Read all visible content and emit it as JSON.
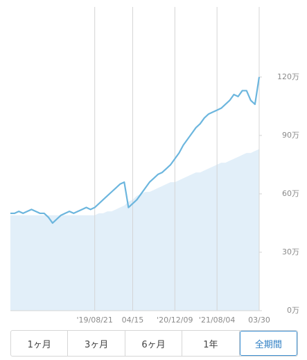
{
  "chart_data": {
    "type": "line",
    "categories": [
      null,
      null,
      null,
      null,
      null,
      null,
      null,
      null,
      null,
      null,
      null,
      null,
      null,
      null,
      null,
      null,
      null,
      null,
      null,
      null,
      "'19/08/21",
      null,
      null,
      null,
      null,
      null,
      null,
      null,
      null,
      "04/15",
      null,
      null,
      null,
      null,
      null,
      null,
      null,
      null,
      null,
      "'20/12/09",
      null,
      null,
      null,
      null,
      null,
      null,
      null,
      null,
      null,
      "'21/08/04",
      null,
      null,
      null,
      null,
      null,
      null,
      null,
      null,
      null,
      "03/30"
    ],
    "series": [
      {
        "color": "#6cb6de",
        "values": [
          50,
          50,
          51,
          50,
          51,
          52,
          51,
          50,
          50,
          48,
          45,
          47,
          49,
          50,
          51,
          50,
          51,
          52,
          53,
          52,
          53,
          55,
          57,
          59,
          61,
          63,
          65,
          66,
          53,
          55,
          57,
          60,
          63,
          66,
          68,
          70,
          71,
          73,
          75,
          78,
          81,
          85,
          88,
          91,
          94,
          96,
          99,
          101,
          102,
          103,
          104,
          106,
          108,
          111,
          110,
          113,
          113,
          108,
          106,
          120
        ]
      },
      {
        "color": "#e2eff9",
        "area": true,
        "values": [
          49,
          49,
          49,
          49,
          49,
          49,
          49,
          49,
          49,
          49,
          49,
          49,
          49,
          49,
          49,
          49,
          49,
          49,
          49,
          49,
          49,
          50,
          50,
          51,
          51,
          52,
          53,
          54,
          56,
          57,
          59,
          60,
          61,
          61,
          62,
          63,
          64,
          65,
          66,
          66,
          67,
          68,
          69,
          70,
          71,
          71,
          72,
          73,
          74,
          75,
          76,
          76,
          77,
          78,
          79,
          80,
          81,
          81,
          82,
          83
        ]
      }
    ],
    "ylim": [
      0,
      156
    ],
    "yticks": [
      {
        "value": 0,
        "label": "0万"
      },
      {
        "value": 30,
        "label": "30万"
      },
      {
        "value": 60,
        "label": "60万"
      },
      {
        "value": 90,
        "label": "90万"
      },
      {
        "value": 120,
        "label": "120万"
      }
    ],
    "grid": true
  },
  "buttons": [
    "1ヶ月",
    "3ヶ月",
    "6ヶ月",
    "1年",
    "全期間"
  ],
  "selected": 4
}
